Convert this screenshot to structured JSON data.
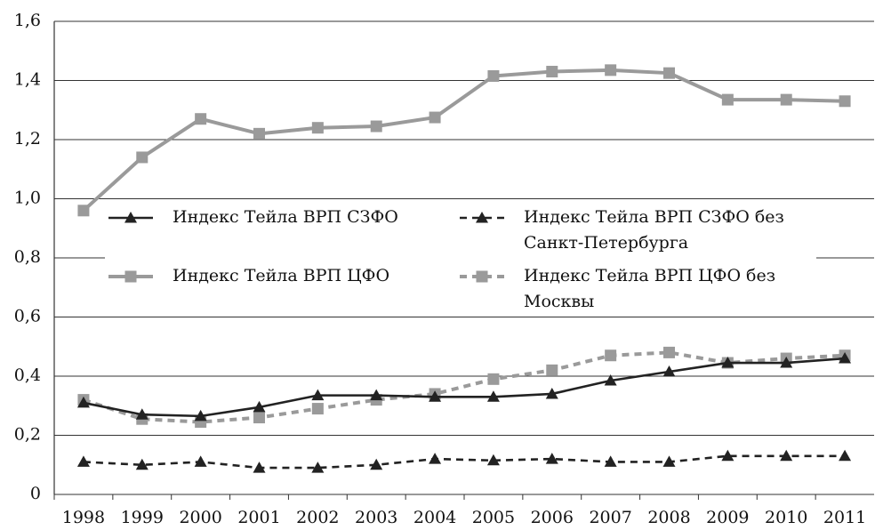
{
  "chart_data": {
    "type": "line",
    "categories": [
      "1998",
      "1999",
      "2000",
      "2001",
      "2002",
      "2003",
      "2004",
      "2005",
      "2006",
      "2007",
      "2008",
      "2009",
      "2010",
      "2011"
    ],
    "series": [
      {
        "name": "Индекс Тейла ВРП СЗФО",
        "color": "#222222",
        "dash": false,
        "marker": "triangle",
        "values": [
          0.31,
          0.27,
          0.265,
          0.295,
          0.335,
          0.335,
          0.33,
          0.33,
          0.34,
          0.385,
          0.415,
          0.445,
          0.445,
          0.46
        ]
      },
      {
        "name": "Индекс Тейла ВРП СЗФО без Санкт-Петербурга",
        "color": "#222222",
        "dash": true,
        "marker": "triangle",
        "values": [
          0.11,
          0.1,
          0.11,
          0.09,
          0.09,
          0.1,
          0.12,
          0.115,
          0.12,
          0.11,
          0.11,
          0.13,
          0.13,
          0.13
        ]
      },
      {
        "name": "Индекс Тейла ВРП ЦФО",
        "color": "#9a9a9a",
        "dash": false,
        "marker": "square",
        "values": [
          0.96,
          1.14,
          1.27,
          1.22,
          1.24,
          1.245,
          1.275,
          1.415,
          1.43,
          1.435,
          1.425,
          1.335,
          1.335,
          1.33
        ]
      },
      {
        "name": "Индекс Тейла ВРП ЦФО без Москвы",
        "color": "#9a9a9a",
        "dash": true,
        "marker": "square",
        "values": [
          0.32,
          0.255,
          0.245,
          0.26,
          0.29,
          0.32,
          0.34,
          0.39,
          0.42,
          0.47,
          0.48,
          0.445,
          0.46,
          0.47
        ]
      }
    ],
    "ylim": [
      0,
      1.6
    ],
    "yticks": [
      0,
      {
        "value": 0.2,
        "label": "0,2"
      },
      {
        "value": 0.4,
        "label": "0,4"
      },
      {
        "value": 0.6,
        "label": "0,6"
      },
      {
        "value": 0.8,
        "label": "0,8"
      },
      {
        "value": 1.0,
        "label": "1,0"
      },
      {
        "value": 1.2,
        "label": "1,2"
      },
      {
        "value": 1.4,
        "label": "1,4"
      },
      {
        "value": 1.6,
        "label": "1,6"
      }
    ],
    "grid": true
  }
}
